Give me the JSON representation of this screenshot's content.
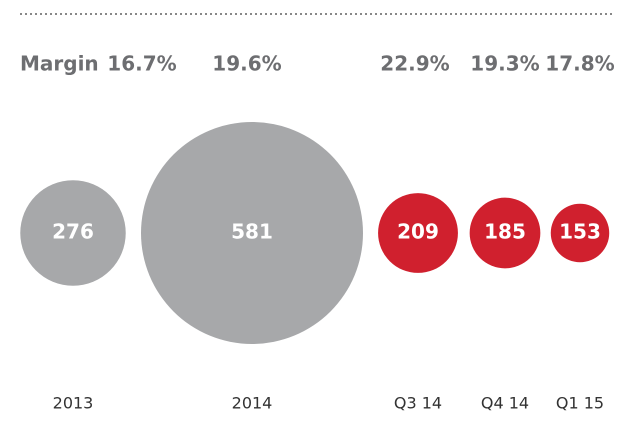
{
  "chart_data": {
    "type": "bubble",
    "categories": [
      "2013",
      "2014",
      "Q3 14",
      "Q4 14",
      "Q1 15"
    ],
    "values": [
      276,
      581,
      209,
      185,
      153
    ],
    "colors": [
      "#a7a8aa",
      "#a7a8aa",
      "#d0202e",
      "#d0202e",
      "#d0202e"
    ],
    "margin_label": "Margin",
    "margins": [
      16.7,
      19.6,
      22.9,
      19.3,
      17.8
    ],
    "margin_labels": [
      "16.7%",
      "19.6%",
      "22.9%",
      "19.3%",
      "17.8%"
    ]
  }
}
